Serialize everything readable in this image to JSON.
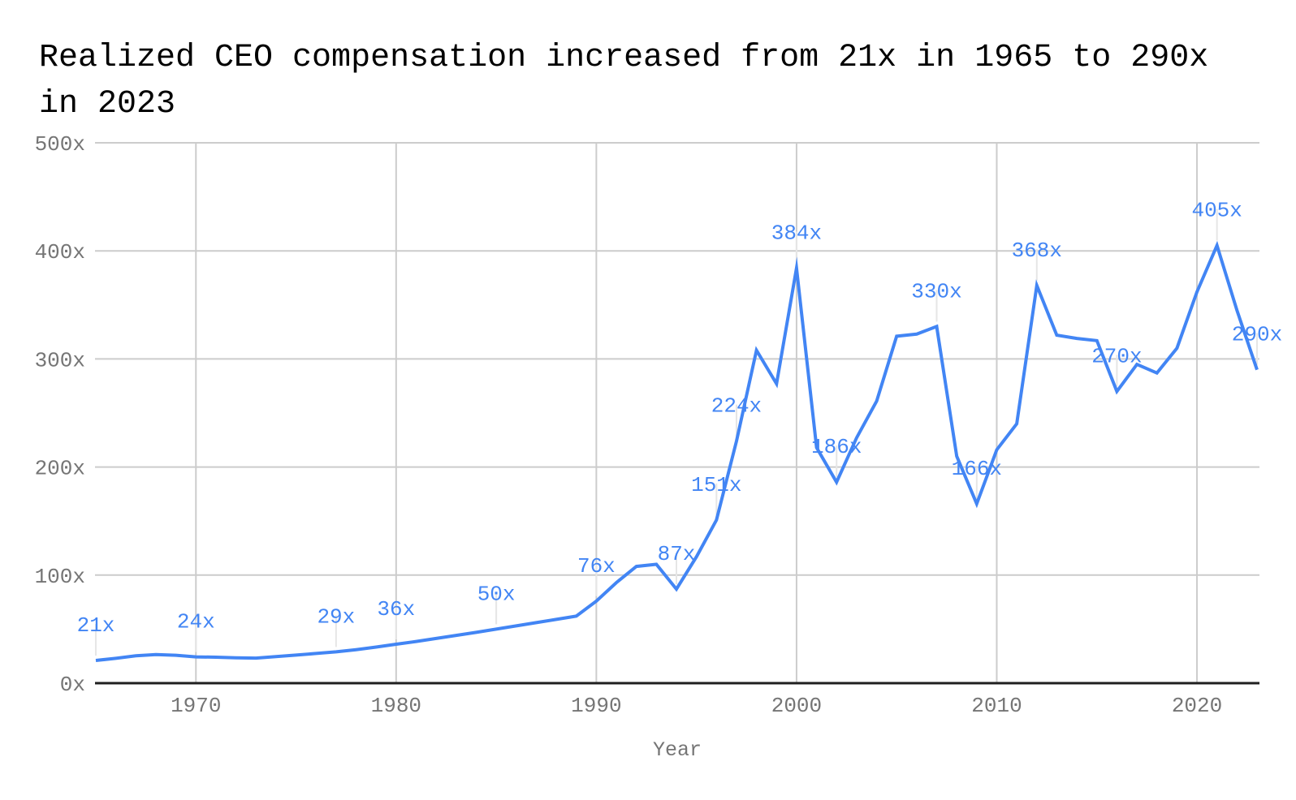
{
  "page": {
    "background_color": "#ffffff"
  },
  "title": {
    "text": "Realized CEO compensation increased from 21x in 1965 to 290x in 2023"
  },
  "chart": {
    "type": "line",
    "x_axis": {
      "title": "Year",
      "tick_years": [
        1970,
        1980,
        1990,
        2000,
        2010,
        2020
      ],
      "tick_labels": [
        "1970",
        "1980",
        "1990",
        "2000",
        "2010",
        "2020"
      ]
    },
    "y_axis": {
      "tick_values": [
        0,
        100,
        200,
        300,
        400,
        500
      ],
      "tick_labels": [
        "0x",
        "100x",
        "200x",
        "300x",
        "400x",
        "500x"
      ]
    },
    "colors": {
      "series_line": "#4285f4",
      "data_label": "#4285f4",
      "gridline": "#cccccc",
      "axis_baseline": "#1f1f1f",
      "tick_label": "#757575",
      "axis_title": "#757575",
      "label_leader": "#e6e6e6",
      "title_text": "#000000"
    }
  },
  "chart_data": {
    "type": "line",
    "title": "Realized CEO compensation increased from 21x in 1965 to 290x in 2023",
    "xlabel": "Year",
    "ylabel": "",
    "x_range": [
      1965,
      2023
    ],
    "ylim": [
      0,
      500
    ],
    "y_tick_suffix": "x",
    "grid": true,
    "legend": "none",
    "series": [
      {
        "name": "Realized CEO compensation",
        "x": [
          1965,
          1966,
          1967,
          1968,
          1969,
          1970,
          1971,
          1972,
          1973,
          1974,
          1975,
          1976,
          1977,
          1978,
          1979,
          1980,
          1981,
          1982,
          1983,
          1984,
          1985,
          1986,
          1987,
          1988,
          1989,
          1990,
          1991,
          1992,
          1993,
          1994,
          1995,
          1996,
          1997,
          1998,
          1999,
          2000,
          2001,
          2002,
          2003,
          2004,
          2005,
          2006,
          2007,
          2008,
          2009,
          2010,
          2011,
          2012,
          2013,
          2014,
          2015,
          2016,
          2017,
          2018,
          2019,
          2020,
          2021,
          2022,
          2023
        ],
        "values": [
          21,
          23,
          25.3,
          26.5,
          25.8,
          24.3,
          24,
          23.5,
          23.2,
          24.6,
          26,
          27.5,
          29,
          31,
          33.4,
          36,
          38.6,
          41.4,
          44.2,
          47,
          50,
          53,
          56,
          59,
          62,
          76,
          93,
          108,
          110,
          87,
          117,
          151,
          224,
          308,
          277,
          384,
          218,
          186,
          227,
          261,
          321,
          323,
          330,
          210,
          166,
          216,
          240,
          368,
          322,
          319,
          317,
          270,
          295,
          287,
          310,
          362,
          405,
          345,
          290
        ]
      }
    ],
    "point_labels": [
      {
        "x": 1965,
        "text": "21x"
      },
      {
        "x": 1970,
        "text": "24x"
      },
      {
        "x": 1977,
        "text": "29x"
      },
      {
        "x": 1980,
        "text": "36x"
      },
      {
        "x": 1985,
        "text": "50x"
      },
      {
        "x": 1990,
        "text": "76x"
      },
      {
        "x": 1994,
        "text": "87x"
      },
      {
        "x": 1996,
        "text": "151x"
      },
      {
        "x": 1997,
        "text": "224x"
      },
      {
        "x": 2000,
        "text": "384x"
      },
      {
        "x": 2002,
        "text": "186x"
      },
      {
        "x": 2007,
        "text": "330x"
      },
      {
        "x": 2009,
        "text": "166x"
      },
      {
        "x": 2012,
        "text": "368x"
      },
      {
        "x": 2016,
        "text": "270x"
      },
      {
        "x": 2021,
        "text": "405x"
      },
      {
        "x": 2023,
        "text": "290x"
      }
    ]
  }
}
